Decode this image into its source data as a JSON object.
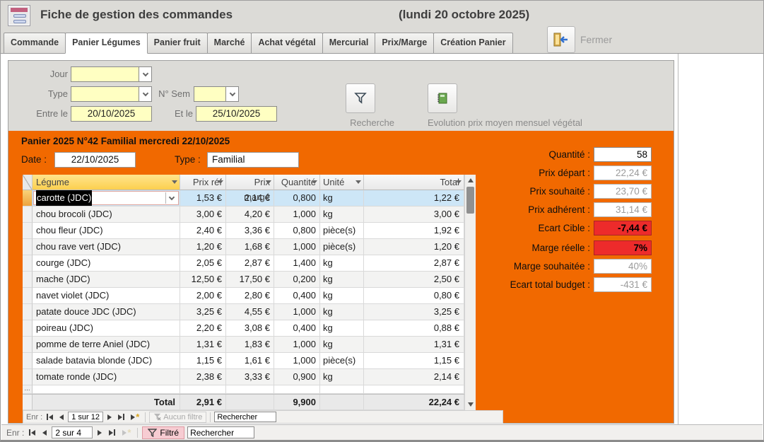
{
  "window": {
    "title": "Fiche de gestion des commandes",
    "date_note": "(lundi 20 octobre 2025)"
  },
  "tabs": {
    "items": [
      {
        "label": "Commande",
        "active": false
      },
      {
        "label": "Panier Légumes",
        "active": true
      },
      {
        "label": "Panier fruit",
        "active": false
      },
      {
        "label": "Marché",
        "active": false
      },
      {
        "label": "Achat végétal",
        "active": false
      },
      {
        "label": "Mercurial",
        "active": false
      },
      {
        "label": "Prix/Marge",
        "active": false
      },
      {
        "label": "Création Panier",
        "active": false
      }
    ],
    "close_label": "Fermer"
  },
  "filters": {
    "jour_label": "Jour",
    "jour_value": "",
    "type_label": "Type",
    "type_value": "",
    "sem_label": "N° Sem",
    "sem_value": "",
    "from_label": "Entre le",
    "from_value": "20/10/2025",
    "to_label": "Et le",
    "to_value": "25/10/2025",
    "search_button": "Recherche",
    "evolution_button": "Evolution prix moyen mensuel végétal"
  },
  "panier": {
    "header": "Panier 2025 N°42 Familial mercredi 22/10/2025",
    "date_label": "Date :",
    "date_value": "22/10/2025",
    "type_label": "Type :",
    "type_value": "Familial"
  },
  "table": {
    "columns": [
      "Légume",
      "Prix réf",
      "Prix margé",
      "Quantité",
      "Unité",
      "Total"
    ],
    "rows": [
      {
        "legume": "carotte (JDC)",
        "prix_ref": "1,53 €",
        "prix_marge": "2,14 €",
        "quantite": "0,800",
        "unite": "kg",
        "total": "1,22 €",
        "selected": true
      },
      {
        "legume": "chou brocoli (JDC)",
        "prix_ref": "3,00 €",
        "prix_marge": "4,20 €",
        "quantite": "1,000",
        "unite": "kg",
        "total": "3,00 €",
        "selected": false
      },
      {
        "legume": "chou fleur (JDC)",
        "prix_ref": "2,40 €",
        "prix_marge": "3,36 €",
        "quantite": "0,800",
        "unite": "pièce(s)",
        "total": "1,92 €",
        "selected": false
      },
      {
        "legume": "chou rave vert (JDC)",
        "prix_ref": "1,20 €",
        "prix_marge": "1,68 €",
        "quantite": "1,000",
        "unite": "pièce(s)",
        "total": "1,20 €",
        "selected": false
      },
      {
        "legume": "courge (JDC)",
        "prix_ref": "2,05 €",
        "prix_marge": "2,87 €",
        "quantite": "1,400",
        "unite": "kg",
        "total": "2,87 €",
        "selected": false
      },
      {
        "legume": "mache (JDC)",
        "prix_ref": "12,50 €",
        "prix_marge": "17,50 €",
        "quantite": "0,200",
        "unite": "kg",
        "total": "2,50 €",
        "selected": false
      },
      {
        "legume": "navet violet (JDC)",
        "prix_ref": "2,00 €",
        "prix_marge": "2,80 €",
        "quantite": "0,400",
        "unite": "kg",
        "total": "0,80 €",
        "selected": false
      },
      {
        "legume": "patate douce JDC (JDC)",
        "prix_ref": "3,25 €",
        "prix_marge": "4,55 €",
        "quantite": "1,000",
        "unite": "kg",
        "total": "3,25 €",
        "selected": false
      },
      {
        "legume": "poireau (JDC)",
        "prix_ref": "2,20 €",
        "prix_marge": "3,08 €",
        "quantite": "0,400",
        "unite": "kg",
        "total": "0,88 €",
        "selected": false
      },
      {
        "legume": "pomme de terre Aniel (JDC)",
        "prix_ref": "1,31 €",
        "prix_marge": "1,83 €",
        "quantite": "1,000",
        "unite": "kg",
        "total": "1,31 €",
        "selected": false
      },
      {
        "legume": "salade batavia blonde (JDC)",
        "prix_ref": "1,15 €",
        "prix_marge": "1,61 €",
        "quantite": "1,000",
        "unite": "pièce(s)",
        "total": "1,15 €",
        "selected": false
      },
      {
        "legume": "tomate ronde (JDC)",
        "prix_ref": "2,38 €",
        "prix_marge": "3,33 €",
        "quantite": "0,900",
        "unite": "kg",
        "total": "2,14 €",
        "selected": false
      }
    ],
    "new_row_marker": "...",
    "totals": {
      "label": "Total",
      "prix_ref": "2,91 €",
      "quantite": "9,900",
      "total": "22,24 €"
    }
  },
  "summary": {
    "fields": [
      {
        "label": "Quantité :",
        "value": "58",
        "style": "white"
      },
      {
        "label": "Prix départ :",
        "value": "22,24 €",
        "style": "gray"
      },
      {
        "label": "Prix souhaité :",
        "value": "23,70 €",
        "style": "gray"
      },
      {
        "label": "Prix adhérent :",
        "value": "31,14 €",
        "style": "gray"
      },
      {
        "label": "Ecart Cible :",
        "value": "-7,44 €",
        "style": "red"
      },
      {
        "label": "Marge réelle :",
        "value": "7%",
        "style": "red"
      },
      {
        "label": "Marge souhaitée :",
        "value": "40%",
        "style": "gray"
      },
      {
        "label": "Ecart total budget :",
        "value": "-431 €",
        "style": "gray"
      }
    ]
  },
  "subform_nav": {
    "record_label": "Enr :",
    "position": "1 sur 12",
    "filter_label": "Aucun filtre",
    "search_value": "Rechercher"
  },
  "main_nav": {
    "record_label": "Enr :",
    "position": "2 sur 4",
    "filter_label": "Filtré",
    "search_value": "Rechercher"
  },
  "colors": {
    "accent_orange": "#F16900",
    "field_yellow": "#FFFFC2",
    "alert_red": "#ED2B2B",
    "selected_row_blue": "#CDE6F7",
    "legume_header_gold": "#FCD14E",
    "header_gray": "#DCDBD7"
  }
}
